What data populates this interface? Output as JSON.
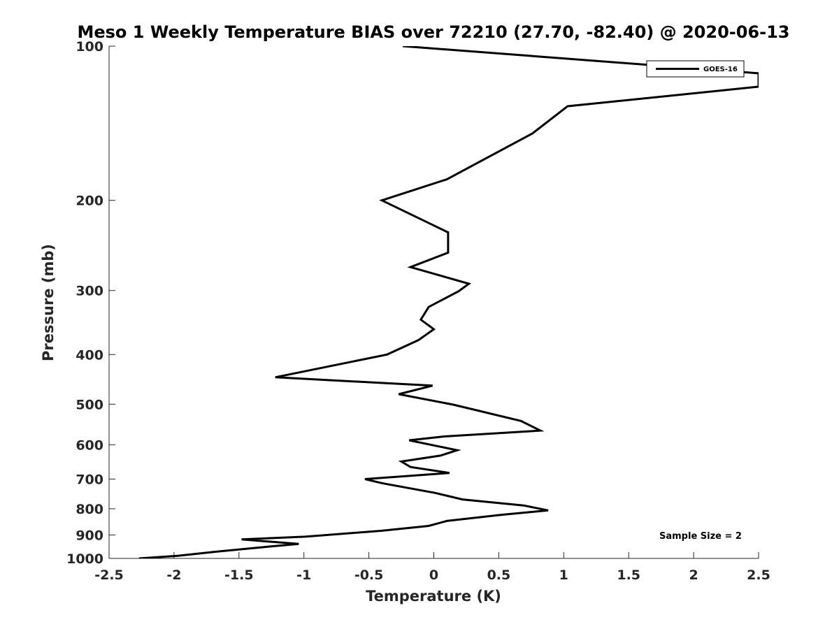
{
  "chart_data": {
    "type": "line",
    "title": "Meso 1 Weekly Temperature BIAS over 72210 (27.70, -82.40) @ 2020-06-13",
    "xlabel": "Temperature (K)",
    "ylabel": "Pressure (mb)",
    "xlim": [
      -2.5,
      2.5
    ],
    "ylim": [
      100,
      1000
    ],
    "y_scale": "log",
    "y_reversed": true,
    "x_ticks": [
      "-2.5",
      "-2",
      "-1.5",
      "-1",
      "-0.5",
      "0",
      "0.5",
      "1",
      "1.5",
      "2",
      "2.5"
    ],
    "y_ticks": [
      "100",
      "200",
      "300",
      "400",
      "500",
      "600",
      "700",
      "800",
      "900",
      "1000"
    ],
    "grid": false,
    "legend_position": "top-right",
    "annotation": "Sample Size = 2",
    "series": [
      {
        "name": "GOES-16",
        "color": "#000000",
        "points": [
          {
            "x": -0.24,
            "p": 100
          },
          {
            "x": 2.5,
            "p": 113
          },
          {
            "x": 2.5,
            "p": 120
          },
          {
            "x": 1.03,
            "p": 131
          },
          {
            "x": 0.76,
            "p": 148
          },
          {
            "x": 0.1,
            "p": 182
          },
          {
            "x": -0.4,
            "p": 200
          },
          {
            "x": 0.11,
            "p": 231
          },
          {
            "x": 0.11,
            "p": 253
          },
          {
            "x": -0.18,
            "p": 270
          },
          {
            "x": 0.27,
            "p": 291
          },
          {
            "x": 0.19,
            "p": 301
          },
          {
            "x": -0.04,
            "p": 323
          },
          {
            "x": -0.1,
            "p": 342
          },
          {
            "x": 0,
            "p": 357
          },
          {
            "x": -0.12,
            "p": 375
          },
          {
            "x": -0.36,
            "p": 400
          },
          {
            "x": -1.22,
            "p": 443
          },
          {
            "x": -0.01,
            "p": 460
          },
          {
            "x": -0.27,
            "p": 478
          },
          {
            "x": 0.15,
            "p": 501
          },
          {
            "x": 0.67,
            "p": 539
          },
          {
            "x": 0.82,
            "p": 563
          },
          {
            "x": 0.08,
            "p": 578
          },
          {
            "x": -0.19,
            "p": 588
          },
          {
            "x": 0.18,
            "p": 615
          },
          {
            "x": 0.05,
            "p": 630
          },
          {
            "x": -0.25,
            "p": 647
          },
          {
            "x": -0.18,
            "p": 663
          },
          {
            "x": 0.12,
            "p": 681
          },
          {
            "x": -0.53,
            "p": 700
          },
          {
            "x": -0.4,
            "p": 713
          },
          {
            "x": 0.01,
            "p": 745
          },
          {
            "x": 0.22,
            "p": 767
          },
          {
            "x": 0.69,
            "p": 788
          },
          {
            "x": 0.88,
            "p": 806
          },
          {
            "x": 0.52,
            "p": 822
          },
          {
            "x": 0.1,
            "p": 845
          },
          {
            "x": -0.04,
            "p": 864
          },
          {
            "x": -0.4,
            "p": 883
          },
          {
            "x": -0.99,
            "p": 907
          },
          {
            "x": -1.48,
            "p": 918
          },
          {
            "x": -1.04,
            "p": 937
          },
          {
            "x": -1.28,
            "p": 949
          },
          {
            "x": -1.67,
            "p": 970
          },
          {
            "x": -1.97,
            "p": 988
          },
          {
            "x": -2.27,
            "p": 1000
          }
        ]
      }
    ]
  }
}
